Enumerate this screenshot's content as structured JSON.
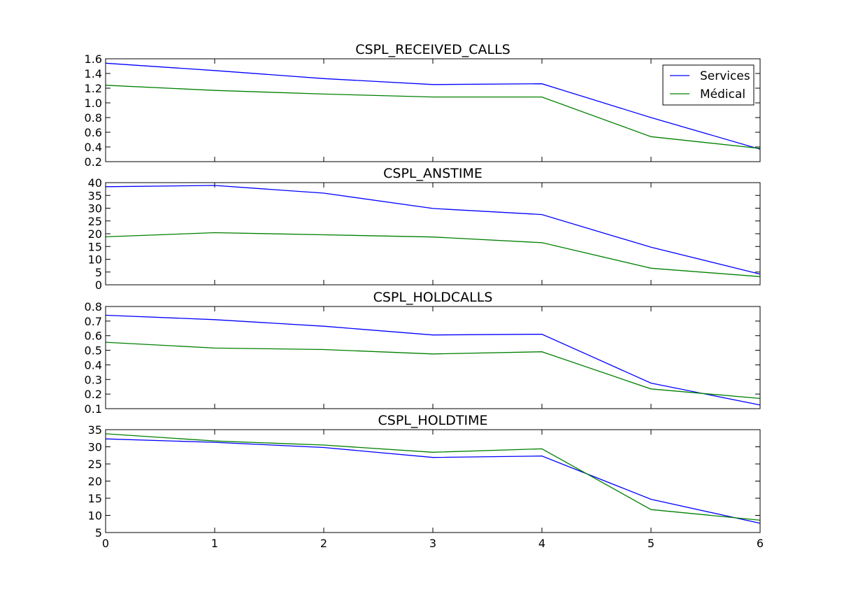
{
  "chart_data": [
    {
      "type": "line",
      "title": "CSPL_RECEIVED_CALLS",
      "x": [
        0,
        1,
        2,
        3,
        4,
        5,
        6
      ],
      "xlim": [
        0,
        6
      ],
      "ylim": [
        0.2,
        1.6
      ],
      "yticks": [
        0.2,
        0.4,
        0.6,
        0.8,
        1.0,
        1.2,
        1.4,
        1.6
      ],
      "ytick_labels": [
        "0.2",
        "0.4",
        "0.6",
        "0.8",
        "1.0",
        "1.2",
        "1.4",
        "1.6"
      ],
      "legend": "top-right",
      "series": [
        {
          "name": "Services",
          "color": "#0000ff",
          "values": [
            1.54,
            1.44,
            1.33,
            1.25,
            1.26,
            0.8,
            0.37
          ]
        },
        {
          "name": "Médical",
          "color": "#008000",
          "values": [
            1.24,
            1.17,
            1.12,
            1.08,
            1.08,
            0.54,
            0.38
          ]
        }
      ]
    },
    {
      "type": "line",
      "title": "CSPL_ANSTIME",
      "x": [
        0,
        1,
        2,
        3,
        4,
        5,
        6
      ],
      "xlim": [
        0,
        6
      ],
      "ylim": [
        0,
        40
      ],
      "yticks": [
        0,
        5,
        10,
        15,
        20,
        25,
        30,
        35,
        40
      ],
      "ytick_labels": [
        "0",
        "5",
        "10",
        "15",
        "20",
        "25",
        "30",
        "35",
        "40"
      ],
      "series": [
        {
          "name": "Services",
          "color": "#0000ff",
          "values": [
            38.4,
            38.9,
            35.9,
            29.9,
            27.5,
            14.7,
            4.2
          ]
        },
        {
          "name": "Médical",
          "color": "#008000",
          "values": [
            18.8,
            20.4,
            19.6,
            18.7,
            16.5,
            6.5,
            3.2
          ]
        }
      ]
    },
    {
      "type": "line",
      "title": "CSPL_HOLDCALLS",
      "x": [
        0,
        1,
        2,
        3,
        4,
        5,
        6
      ],
      "xlim": [
        0,
        6
      ],
      "ylim": [
        0.1,
        0.8
      ],
      "yticks": [
        0.1,
        0.2,
        0.3,
        0.4,
        0.5,
        0.6,
        0.7,
        0.8
      ],
      "ytick_labels": [
        "0.1",
        "0.2",
        "0.3",
        "0.4",
        "0.5",
        "0.6",
        "0.7",
        "0.8"
      ],
      "series": [
        {
          "name": "Services",
          "color": "#0000ff",
          "values": [
            0.74,
            0.71,
            0.665,
            0.605,
            0.61,
            0.275,
            0.125
          ]
        },
        {
          "name": "Médical",
          "color": "#008000",
          "values": [
            0.555,
            0.515,
            0.505,
            0.475,
            0.49,
            0.235,
            0.17
          ]
        }
      ]
    },
    {
      "type": "line",
      "title": "CSPL_HOLDTIME",
      "x": [
        0,
        1,
        2,
        3,
        4,
        5,
        6
      ],
      "xlim": [
        0,
        6
      ],
      "ylim": [
        5,
        35
      ],
      "yticks": [
        5,
        10,
        15,
        20,
        25,
        30,
        35
      ],
      "ytick_labels": [
        "5",
        "10",
        "15",
        "20",
        "25",
        "30",
        "35"
      ],
      "xticks": [
        0,
        1,
        2,
        3,
        4,
        5,
        6
      ],
      "xtick_labels": [
        "0",
        "1",
        "2",
        "3",
        "4",
        "5",
        "6"
      ],
      "series": [
        {
          "name": "Services",
          "color": "#0000ff",
          "values": [
            32.3,
            31.3,
            29.8,
            26.9,
            27.3,
            14.7,
            7.7
          ]
        },
        {
          "name": "Médical",
          "color": "#008000",
          "values": [
            33.8,
            31.7,
            30.5,
            28.4,
            29.4,
            11.7,
            8.6
          ]
        }
      ]
    }
  ]
}
